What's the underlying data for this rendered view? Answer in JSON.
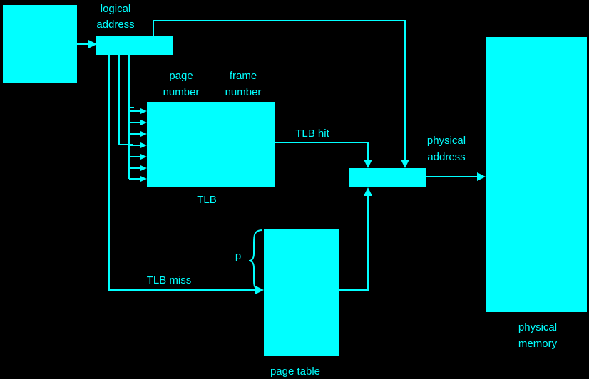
{
  "colors": {
    "background": "#000000",
    "foreground": "#00ffff"
  },
  "labels": {
    "logical_address": [
      "logical",
      "address"
    ],
    "page_number": [
      "page",
      "number"
    ],
    "frame_number": [
      "frame",
      "number"
    ],
    "tlb": "TLB",
    "tlb_hit": "TLB hit",
    "tlb_miss": "TLB miss",
    "physical_address": [
      "physical",
      "address"
    ],
    "p": "p",
    "page_table": "page table",
    "physical_memory": [
      "physical",
      "memory"
    ]
  }
}
